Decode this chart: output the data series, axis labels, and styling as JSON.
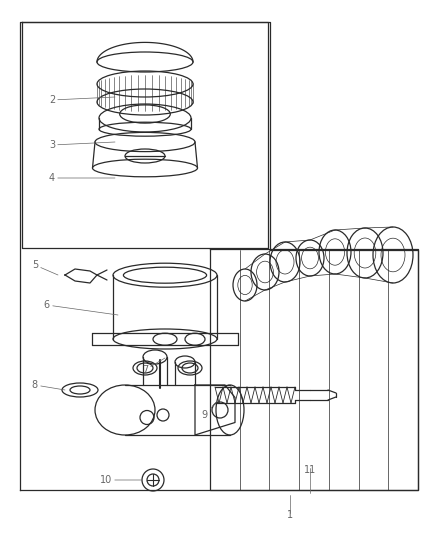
{
  "background_color": "#ffffff",
  "line_color": "#2a2a2a",
  "label_color": "#666666",
  "fig_width": 4.38,
  "fig_height": 5.33,
  "dpi": 100
}
